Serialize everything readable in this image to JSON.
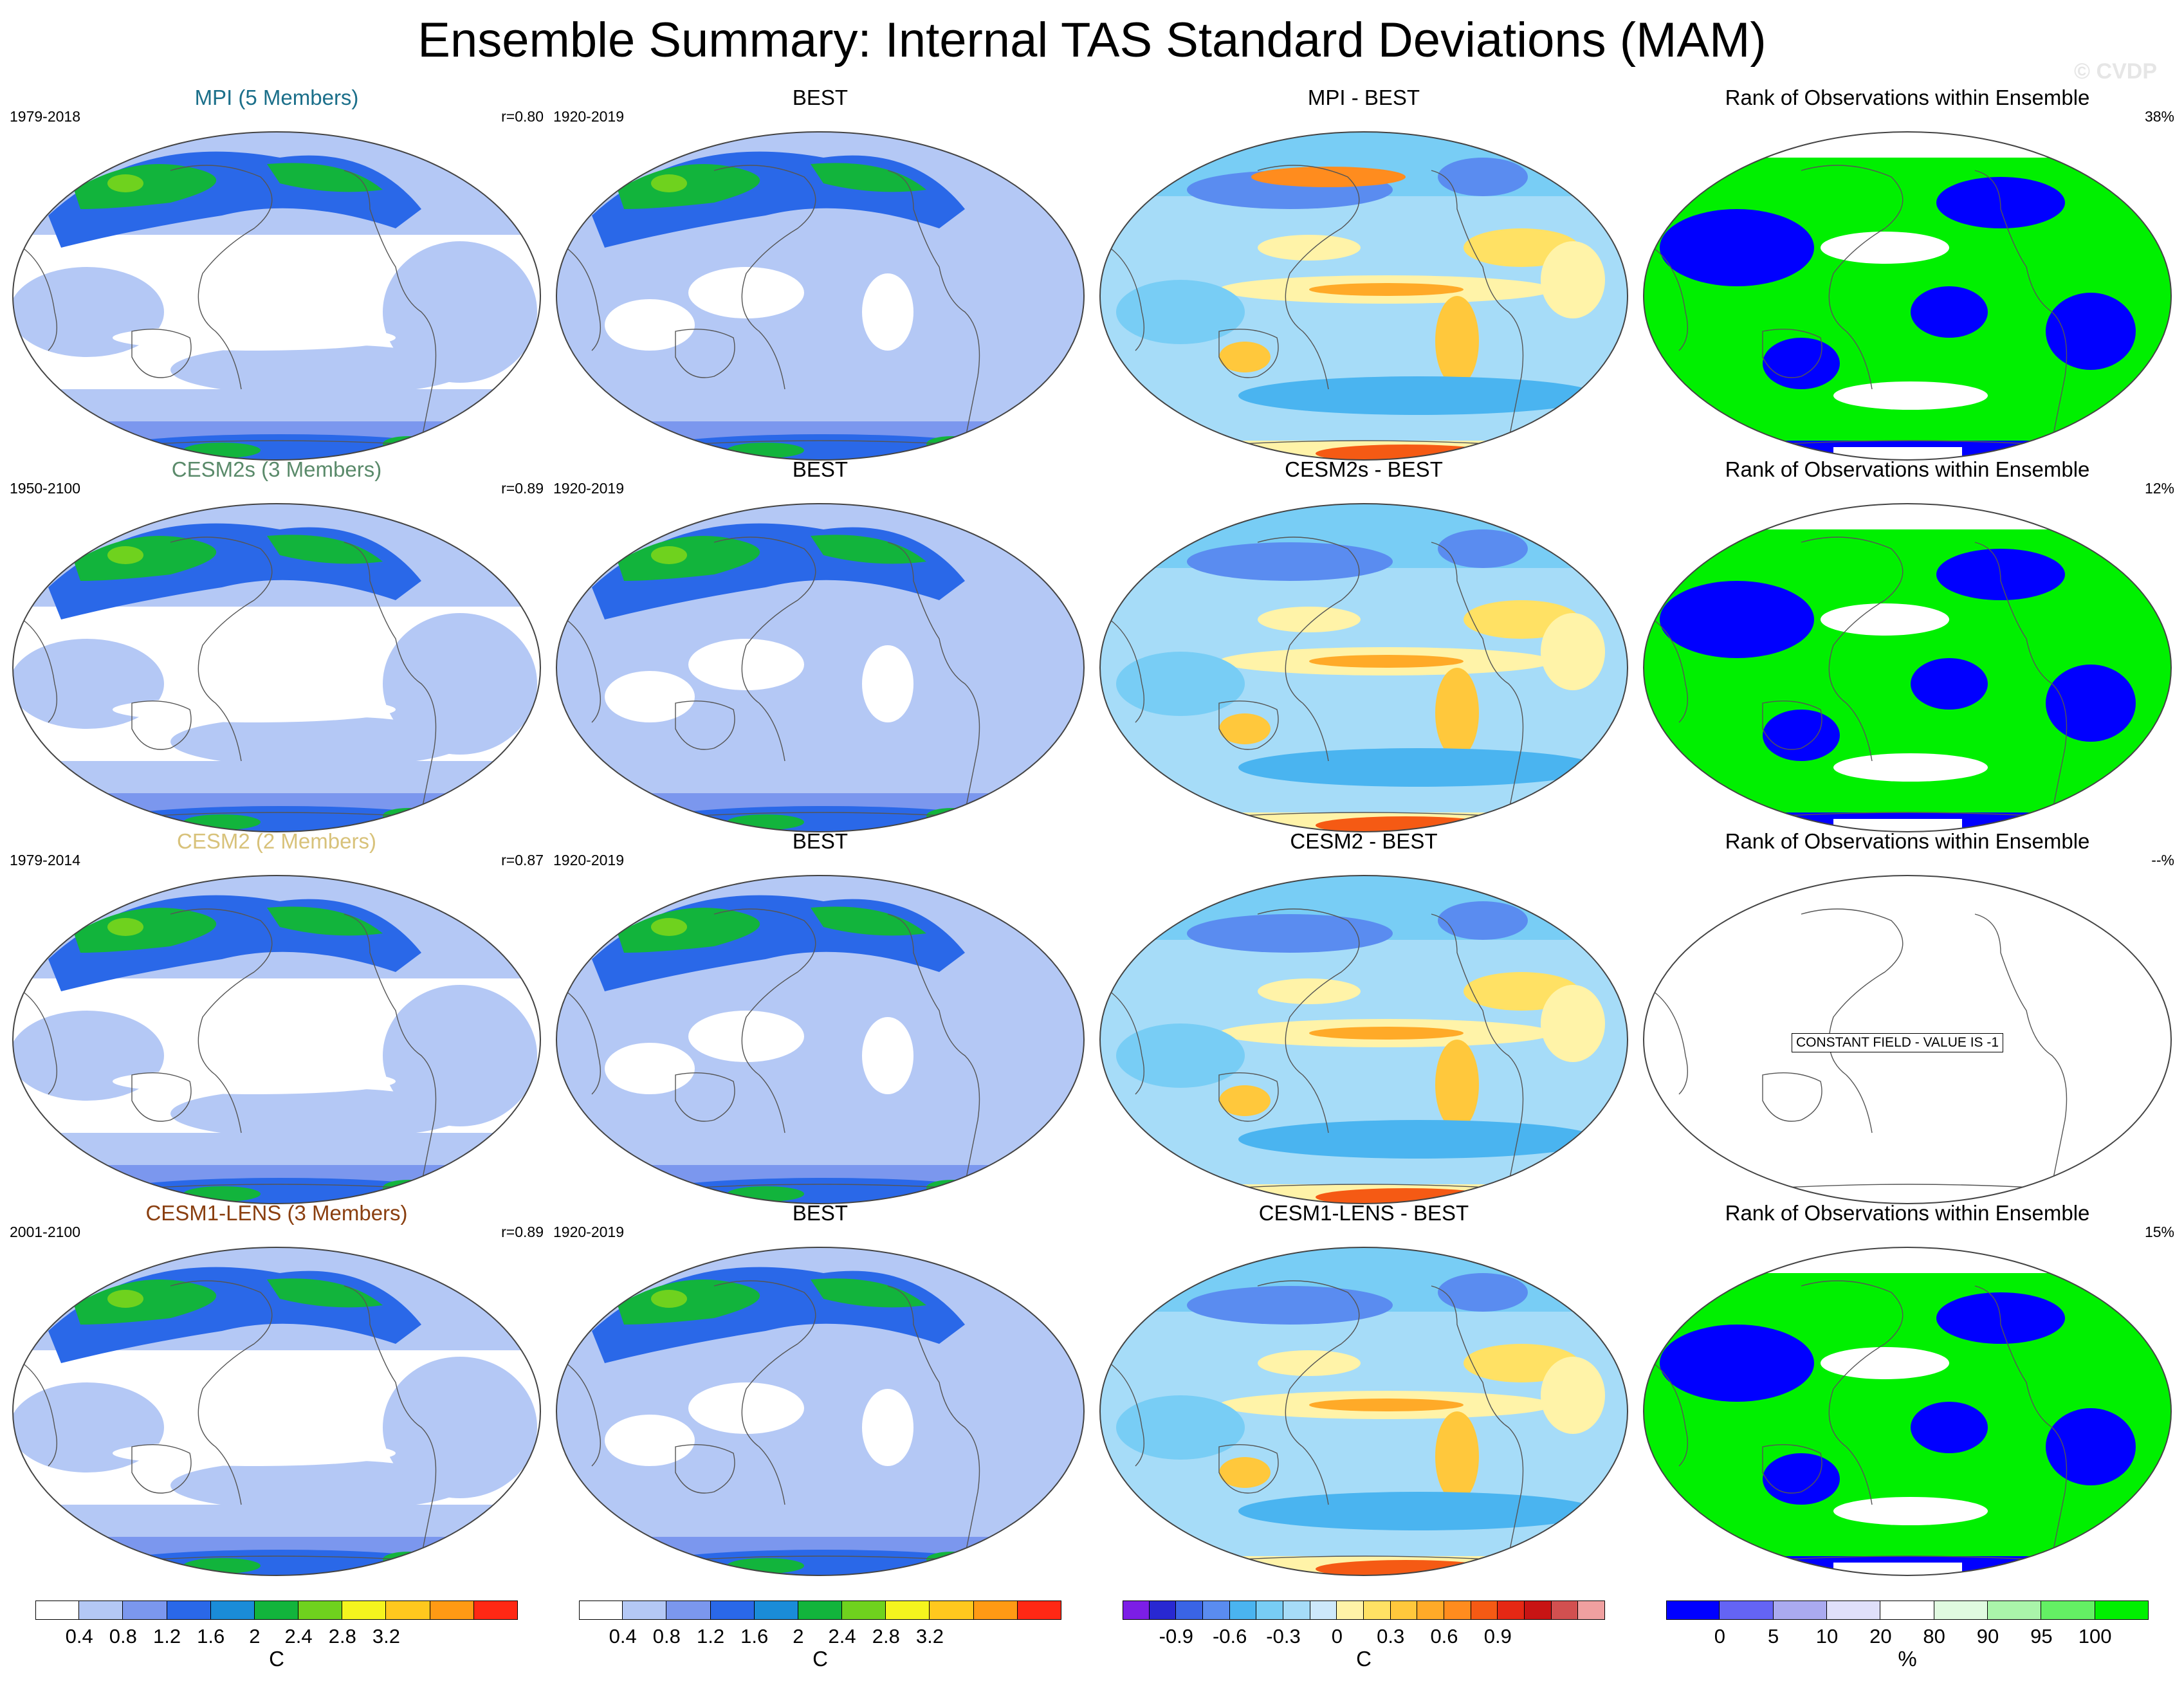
{
  "title": "Ensemble Summary: Internal TAS Standard Deviations (MAM)",
  "watermark": "© CVDP",
  "rows": [
    {
      "model": {
        "title": "MPI (5 Members)",
        "color": "#1b6f8a",
        "period": "1979-2018",
        "corr": "r=0.80"
      },
      "obs": {
        "title": "BEST",
        "period": "1920-2019"
      },
      "diff": {
        "title": "MPI - BEST"
      },
      "rank": {
        "title": "Rank of Observations within Ensemble",
        "pct": "38%"
      }
    },
    {
      "model": {
        "title": "CESM2s (3 Members)",
        "color": "#5a8a6a",
        "period": "1950-2100",
        "corr": "r=0.89"
      },
      "obs": {
        "title": "BEST",
        "period": "1920-2019"
      },
      "diff": {
        "title": "CESM2s - BEST"
      },
      "rank": {
        "title": "Rank of Observations within Ensemble",
        "pct": "12%"
      }
    },
    {
      "model": {
        "title": "CESM2 (2 Members)",
        "color": "#d8c27a",
        "period": "1979-2014",
        "corr": "r=0.87"
      },
      "obs": {
        "title": "BEST",
        "period": "1920-2019"
      },
      "diff": {
        "title": "CESM2 - BEST"
      },
      "rank": {
        "title": "Rank of Observations within Ensemble",
        "pct": "--%",
        "note": "CONSTANT FIELD - VALUE IS -1"
      }
    },
    {
      "model": {
        "title": "CESM1-LENS (3 Members)",
        "color": "#8a3f10",
        "period": "2001-2100",
        "corr": "r=0.89"
      },
      "obs": {
        "title": "BEST",
        "period": "1920-2019"
      },
      "diff": {
        "title": "CESM1-LENS - BEST"
      },
      "rank": {
        "title": "Rank of Observations within Ensemble",
        "pct": "15%"
      }
    }
  ],
  "colorbars": {
    "stdev": {
      "colors": [
        "#ffffff",
        "#b4c8f5",
        "#7b97ee",
        "#2a68e8",
        "#1a8cd8",
        "#12b43c",
        "#6fd21e",
        "#f5f51e",
        "#ffc81e",
        "#ff9a14",
        "#ff2814"
      ],
      "labels": [
        "0.4",
        "0.8",
        "1.2",
        "1.6",
        "2",
        "2.4",
        "2.8",
        "3.2"
      ],
      "units": "C"
    },
    "diff": {
      "colors": [
        "#7c1ee6",
        "#2828d2",
        "#3a64e6",
        "#5a8cf0",
        "#4ab4f0",
        "#78cdf5",
        "#a6dcf8",
        "#cde8fb",
        "#fff3a8",
        "#ffe164",
        "#ffc83c",
        "#ffaa28",
        "#ff8c1e",
        "#f55a14",
        "#e62814",
        "#c81414",
        "#d25050",
        "#f0a0a0"
      ],
      "labels": [
        "-0.9",
        "-0.6",
        "-0.3",
        "0",
        "0.3",
        "0.6",
        "0.9"
      ],
      "units": "C"
    },
    "rank": {
      "colors": [
        "#0000ff",
        "#6464f5",
        "#aaaaf0",
        "#e0e0fa",
        "#ffffff",
        "#e0fae0",
        "#aaf5aa",
        "#64f064",
        "#00f000"
      ],
      "labels": [
        "0",
        "5",
        "10",
        "20",
        "80",
        "90",
        "95",
        "100"
      ],
      "units": "%"
    }
  }
}
